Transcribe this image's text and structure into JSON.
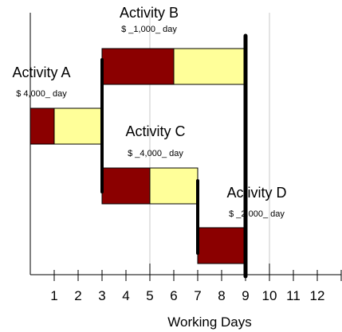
{
  "chart_data": {
    "type": "bar",
    "xlabel": "Working Days",
    "xlim": [
      0,
      13
    ],
    "xticks": [
      1,
      2,
      3,
      4,
      5,
      6,
      7,
      8,
      9,
      10,
      11,
      12
    ],
    "xtick_labels": [
      "1",
      "2",
      "3",
      "4",
      "5",
      "6",
      "7",
      "8",
      "9",
      "10",
      "11",
      "12"
    ],
    "highlight_ticks": [
      5,
      10
    ],
    "milestone_lines": [
      {
        "x": 3,
        "from_activity": 0,
        "to_activity": 2
      },
      {
        "x": 7,
        "from_activity": 2,
        "to_activity": 3
      },
      {
        "x": 9,
        "from_activity": 1,
        "to_activity": 3
      }
    ],
    "activities": [
      {
        "name": "Activity A",
        "cost": "$ 4,000_ day",
        "start": 0,
        "duration": 1,
        "slack_end": 3
      },
      {
        "name": "Activity B",
        "cost": "$ _1,000_ day",
        "start": 3,
        "duration": 3,
        "slack_end": 9
      },
      {
        "name": "Activity C",
        "cost": "$ _4,000_ day",
        "start": 3,
        "duration": 2,
        "slack_end": 7
      },
      {
        "name": "Activity D",
        "cost": "$ _2,000_ day",
        "start": 7,
        "duration": 2,
        "slack_end": 9
      }
    ],
    "colors": {
      "duration": "#8b0000",
      "slack": "#ffff99",
      "outline": "#000000",
      "grid": "#c8c8c8"
    }
  }
}
